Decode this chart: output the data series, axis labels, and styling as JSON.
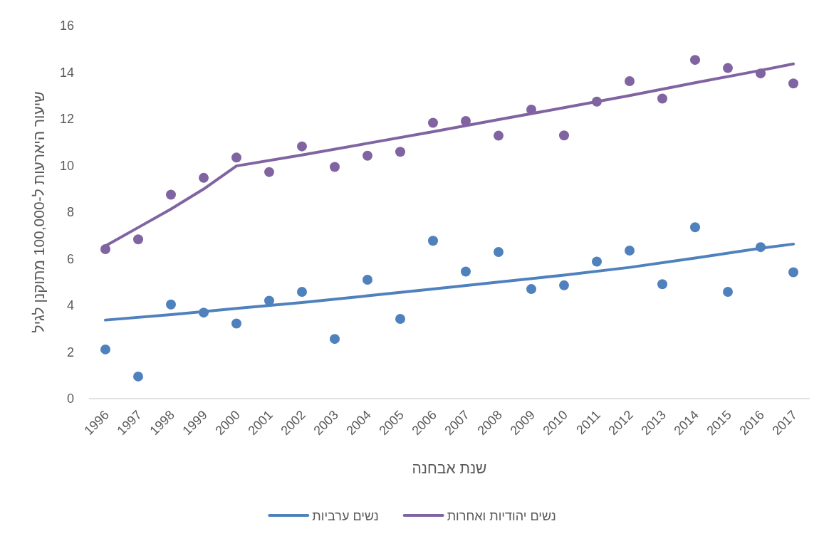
{
  "chart_data": {
    "type": "scatter",
    "xlabel": "שנת אבחנה",
    "ylabel": "שיעור היארעות ל-100,000 מתוקנן לגיל",
    "x": [
      1996,
      1997,
      1998,
      1999,
      2000,
      2001,
      2002,
      2003,
      2004,
      2005,
      2006,
      2007,
      2008,
      2009,
      2010,
      2011,
      2012,
      2013,
      2014,
      2015,
      2016,
      2017
    ],
    "xlim": [
      1995.5,
      2017.5
    ],
    "xticks": [
      1996,
      1997,
      1998,
      1999,
      2000,
      2001,
      2002,
      2003,
      2004,
      2005,
      2006,
      2007,
      2008,
      2009,
      2010,
      2011,
      2012,
      2013,
      2014,
      2015,
      2016,
      2017
    ],
    "ylim": [
      0,
      16
    ],
    "yticks": [
      0,
      2,
      4,
      6,
      8,
      10,
      12,
      14,
      16
    ],
    "grid": false,
    "legend": "bottom",
    "series": [
      {
        "marker": "circle",
        "color": "#4f81bd",
        "values": [
          2.11,
          0.95,
          4.04,
          3.69,
          3.22,
          4.2,
          4.58,
          2.56,
          5.1,
          3.42,
          6.77,
          5.45,
          6.29,
          4.7,
          4.86,
          5.88,
          6.35,
          4.91,
          7.35,
          4.58,
          6.5,
          5.42
        ]
      },
      {
        "marker": "circle",
        "color": "#8064a2",
        "values": [
          6.41,
          6.83,
          8.75,
          9.47,
          10.34,
          9.72,
          10.82,
          9.94,
          10.42,
          10.59,
          11.83,
          11.91,
          11.28,
          12.4,
          11.29,
          12.74,
          13.62,
          12.87,
          14.53,
          14.18,
          13.95,
          13.52
        ]
      },
      {
        "type": "line",
        "marker": "none",
        "line_style": "solid",
        "name": "נשים ערביות",
        "color": "#4f81bd",
        "x": [
          1996,
          1998,
          2000,
          2002,
          2004,
          2006,
          2008,
          2010,
          2012,
          2014,
          2016,
          2017
        ],
        "values": [
          3.37,
          3.6,
          3.87,
          4.12,
          4.41,
          4.7,
          5.0,
          5.3,
          5.63,
          6.03,
          6.45,
          6.63
        ]
      },
      {
        "type": "line",
        "marker": "none",
        "line_style": "solid",
        "name": "נשים יהודיות ואחרות",
        "color": "#8064a2",
        "x": [
          1996,
          1997,
          1998,
          1999,
          2000,
          2002,
          2004,
          2006,
          2008,
          2010,
          2012,
          2014,
          2016,
          2017
        ],
        "values": [
          6.55,
          7.34,
          8.13,
          8.99,
          9.98,
          10.45,
          10.95,
          11.45,
          11.97,
          12.48,
          13.0,
          13.55,
          14.08,
          14.36
        ]
      }
    ]
  }
}
